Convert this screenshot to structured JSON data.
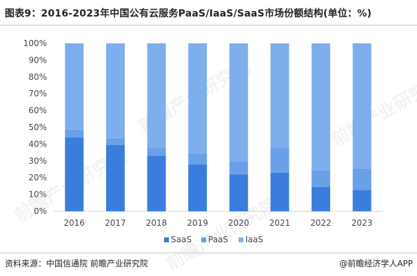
{
  "title": "图表9：2016-2023年中国公有云服务PaaS/IaaS/SaaS市场份额结构(单位：%)",
  "source": "资料来源：中国信通院 前瞻产业研究院",
  "credit": "@前瞻经济学人APP",
  "watermark": "前瞻产业研究院",
  "colors": {
    "SaaS": "#3b7ddd",
    "PaaS": "#6aa0ea",
    "IaaS": "#7eaeec"
  },
  "chart_data": {
    "type": "bar",
    "stacked": true,
    "categories": [
      "2016",
      "2017",
      "2018",
      "2019",
      "2020",
      "2021",
      "2022",
      "2023"
    ],
    "series": [
      {
        "name": "SaaS",
        "values": [
          44,
          39.5,
          33,
          28,
          22,
          23,
          14.5,
          12.5
        ]
      },
      {
        "name": "PaaS",
        "values": [
          4.5,
          4,
          5,
          6.5,
          7.5,
          14.5,
          10,
          13
        ]
      },
      {
        "name": "IaaS",
        "values": [
          51.5,
          56.5,
          62,
          65.5,
          70.5,
          62.5,
          75.5,
          74.5
        ]
      }
    ],
    "ylim": [
      0,
      100
    ],
    "yticks": [
      "0%",
      "10%",
      "20%",
      "30%",
      "40%",
      "50%",
      "60%",
      "70%",
      "80%",
      "90%",
      "100%"
    ],
    "legend": "bottom"
  }
}
